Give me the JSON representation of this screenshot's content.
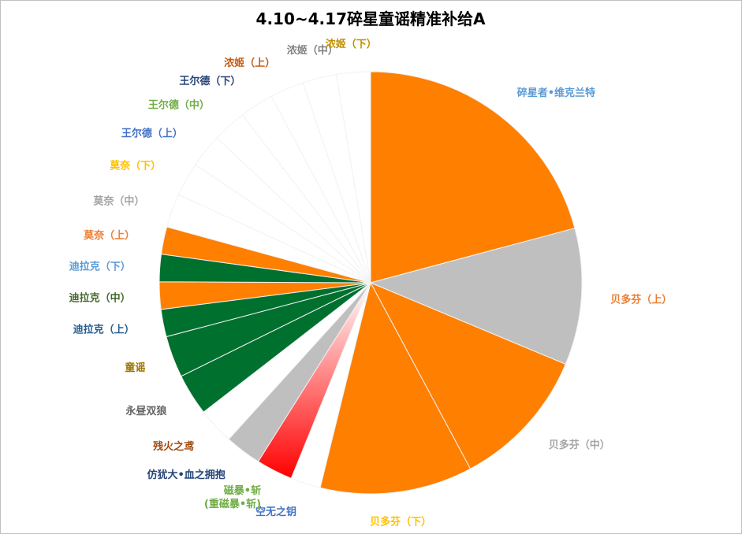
{
  "chart_data": {
    "type": "pie",
    "title": "4.10~4.17碎星童谣精准补给A",
    "start_angle_deg": 0,
    "direction": "clockwise",
    "slices": [
      {
        "label": "碎星者•维克兰特",
        "value": 20.9,
        "color": "#FF7F00",
        "label_color": "#5B9BD5",
        "fill": "solid"
      },
      {
        "label": "贝多芬（上）",
        "value": 10.5,
        "color": "#BFBFBF",
        "label_color": "#ED7D31",
        "fill": "solid"
      },
      {
        "label": "贝多芬（中）",
        "value": 10.9,
        "color": "#FF7F00",
        "label_color": "#A5A5A5",
        "fill": "solid"
      },
      {
        "label": "贝多芬（下）",
        "value": 11.7,
        "color": "#FF7F00",
        "label_color": "#FFC000",
        "fill": "solid"
      },
      {
        "label": "空无之钥",
        "value": 2.3,
        "color": "#FFFFFF",
        "label_color": "#4472C4",
        "fill": "solid"
      },
      {
        "label": "磁暴•斩\n(重磁暴•斩)",
        "value": 2.8,
        "color": "#FF0000",
        "label_color": "#70AD47",
        "fill": "gradient"
      },
      {
        "label": "仿犹大•血之拥抱",
        "value": 2.8,
        "color": "#BFBFBF",
        "label_color": "#264478",
        "fill": "solid"
      },
      {
        "label": "残火之鸢",
        "value": 2.8,
        "color": "#FFFFFF",
        "label_color": "#9E480E",
        "fill": "solid"
      },
      {
        "label": "永昼双狼",
        "value": 3.2,
        "color": "#00702F",
        "label_color": "#636363",
        "fill": "solid"
      },
      {
        "label": "童谣",
        "value": 3.2,
        "color": "#00702F",
        "label_color": "#997300",
        "fill": "solid"
      },
      {
        "label": "迪拉克（上）",
        "value": 2.1,
        "color": "#00702F",
        "label_color": "#255E91",
        "fill": "solid"
      },
      {
        "label": "迪拉克（中）",
        "value": 2.1,
        "color": "#FF7F00",
        "label_color": "#43682B",
        "fill": "solid"
      },
      {
        "label": "迪拉克（下）",
        "value": 2.1,
        "color": "#00702F",
        "label_color": "#5B9BD5",
        "fill": "solid"
      },
      {
        "label": "莫奈（上）",
        "value": 2.1,
        "color": "#FF7F00",
        "label_color": "#ED7D31",
        "fill": "solid"
      },
      {
        "label": "莫奈（中）",
        "value": 2.6,
        "color": "#FFFFFF",
        "label_color": "#A5A5A5",
        "fill": "solid"
      },
      {
        "label": "莫奈（下）",
        "value": 2.6,
        "color": "#FFFFFF",
        "label_color": "#FFC000",
        "fill": "solid"
      },
      {
        "label": "王尔德（上）",
        "value": 2.6,
        "color": "#FFFFFF",
        "label_color": "#4472C4",
        "fill": "solid"
      },
      {
        "label": "王尔德（中）",
        "value": 2.6,
        "color": "#FFFFFF",
        "label_color": "#70AD47",
        "fill": "solid"
      },
      {
        "label": "王尔德（下）",
        "value": 2.6,
        "color": "#FFFFFF",
        "label_color": "#264478",
        "fill": "solid"
      },
      {
        "label": "浓姬（上）",
        "value": 2.6,
        "color": "#FFFFFF",
        "label_color": "#C55A11",
        "fill": "solid"
      },
      {
        "label": "浓姬（中）",
        "value": 2.6,
        "color": "#FFFFFF",
        "label_color": "#7F7F7F",
        "fill": "solid"
      },
      {
        "label": "浓姬（下）",
        "value": 2.6,
        "color": "#FFFFFF",
        "label_color": "#BF9000",
        "fill": "solid"
      }
    ],
    "legend": "none",
    "slice_outline_color": "#F2F2F2"
  }
}
